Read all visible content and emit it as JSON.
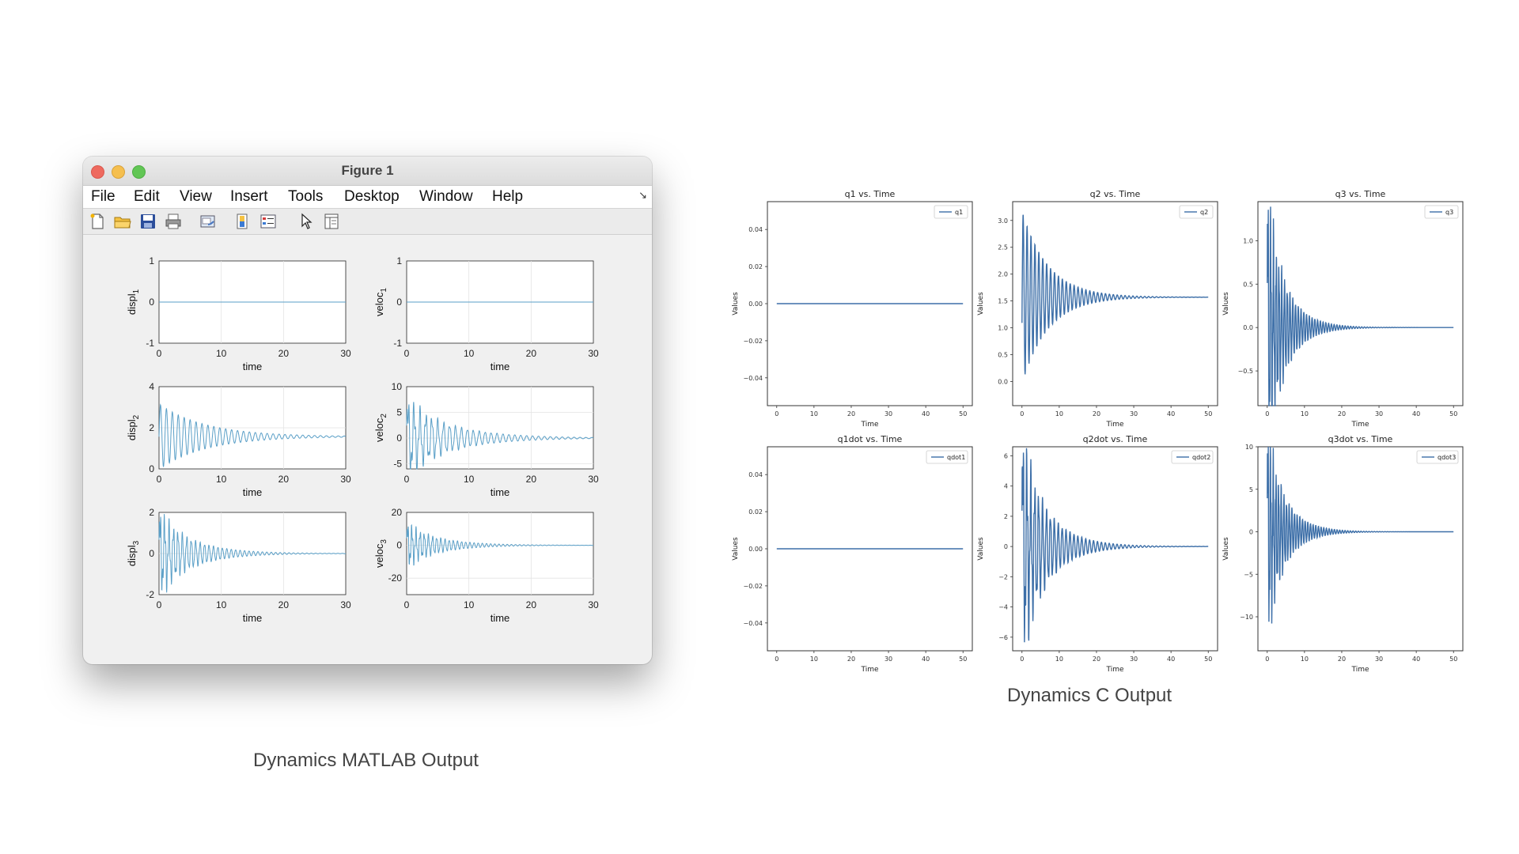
{
  "window": {
    "title": "Figure 1",
    "menu": [
      "File",
      "Edit",
      "View",
      "Insert",
      "Tools",
      "Desktop",
      "Window",
      "Help"
    ],
    "toolbar_icons": [
      "new-figure-icon",
      "open-file-icon",
      "save-icon",
      "print-icon",
      "link-plot-icon",
      "colorbar-icon",
      "legend-icon",
      "pointer-icon",
      "property-inspector-icon"
    ]
  },
  "captions": {
    "matlab": "Dynamics MATLAB Output",
    "c": "Dynamics C Output"
  },
  "colors": {
    "matlab_line": "#5a9fc7",
    "c_line": "#3d6fa8"
  },
  "chart_data": [
    {
      "type": "line",
      "ylabel_base": "displ",
      "ylabel_sub": "1",
      "xlabel": "time",
      "xlim": [
        0,
        30
      ],
      "xticks": [
        0,
        10,
        20,
        30
      ],
      "ylim": [
        -1,
        1
      ],
      "yticks": [
        -1,
        0,
        1
      ],
      "grid": true,
      "signal": {
        "kind": "zero",
        "value": 0
      }
    },
    {
      "type": "line",
      "ylabel_base": "veloc",
      "ylabel_sub": "1",
      "xlabel": "time",
      "xlim": [
        0,
        30
      ],
      "xticks": [
        0,
        10,
        20,
        30
      ],
      "ylim": [
        -1,
        1
      ],
      "yticks": [
        -1,
        0,
        1
      ],
      "grid": true,
      "signal": {
        "kind": "zero",
        "value": 0
      }
    },
    {
      "type": "line",
      "ylabel_base": "displ",
      "ylabel_sub": "2",
      "xlabel": "time",
      "xlim": [
        0,
        30
      ],
      "xticks": [
        0,
        10,
        20,
        30
      ],
      "ylim": [
        0,
        4
      ],
      "yticks": [
        0,
        2,
        4
      ],
      "grid": true,
      "signal": {
        "kind": "decay",
        "offset": 1.57,
        "amp": 1.6,
        "freq": 1.05,
        "tau": 7.5
      }
    },
    {
      "type": "line",
      "ylabel_base": "veloc",
      "ylabel_sub": "2",
      "xlabel": "time",
      "xlim": [
        0,
        30
      ],
      "xticks": [
        0,
        10,
        20,
        30
      ],
      "ylim": [
        -6,
        10
      ],
      "yticks": [
        -5,
        0,
        5,
        10
      ],
      "grid": true,
      "signal": {
        "kind": "decay",
        "offset": 0,
        "amp": 6.2,
        "freq": 1.05,
        "tau": 7.5,
        "jitter": true
      }
    },
    {
      "type": "line",
      "ylabel_base": "displ",
      "ylabel_sub": "3",
      "xlabel": "time",
      "xlim": [
        0,
        30
      ],
      "xticks": [
        0,
        10,
        20,
        30
      ],
      "ylim": [
        -2,
        2
      ],
      "yticks": [
        -2,
        0,
        2
      ],
      "grid": true,
      "signal": {
        "kind": "decay",
        "offset": 0,
        "amp": 1.7,
        "freq": 1.4,
        "tau": 5.5,
        "jitter": true
      }
    },
    {
      "type": "line",
      "ylabel_base": "veloc",
      "ylabel_sub": "3",
      "xlabel": "time",
      "xlim": [
        0,
        30
      ],
      "xticks": [
        0,
        10,
        20,
        30
      ],
      "ylim": [
        -30,
        20
      ],
      "yticks": [
        -20,
        0,
        20
      ],
      "grid": true,
      "signal": {
        "kind": "decay",
        "offset": 0,
        "amp": 11,
        "freq": 1.5,
        "tau": 5.5,
        "jitter": true
      }
    },
    {
      "type": "line",
      "title": "q1 vs. Time",
      "legend": "q1",
      "xlabel": "Time",
      "ylabel": "Values",
      "xlim": [
        -2.5,
        52.5
      ],
      "xticks": [
        0,
        10,
        20,
        30,
        40,
        50
      ],
      "ylim": [
        -0.055,
        0.055
      ],
      "yticks": [
        0.04,
        0.02,
        0.0,
        -0.02,
        -0.04
      ],
      "yticklabels": [
        "0.04",
        "0.02",
        "0.00",
        "−0.02",
        "−0.04"
      ],
      "signal": {
        "kind": "zero",
        "value": 0
      }
    },
    {
      "type": "line",
      "title": "q2 vs. Time",
      "legend": "q2",
      "xlabel": "Time",
      "ylabel": "Values",
      "xlim": [
        -2.5,
        52.5
      ],
      "xticks": [
        0,
        10,
        20,
        30,
        40,
        50
      ],
      "ylim": [
        -0.45,
        3.35
      ],
      "yticks": [
        0.0,
        0.5,
        1.0,
        1.5,
        2.0,
        2.5,
        3.0
      ],
      "yticklabels": [
        "0.0",
        "0.5",
        "1.0",
        "1.5",
        "2.0",
        "2.5",
        "3.0"
      ],
      "signal": {
        "kind": "decay",
        "offset": 1.57,
        "amp": 1.62,
        "freq": 0.95,
        "tau": 7,
        "start": -0.3
      }
    },
    {
      "type": "line",
      "title": "q3 vs. Time",
      "legend": "q3",
      "xlabel": "Time",
      "ylabel": "Values",
      "xlim": [
        -2.5,
        52.5
      ],
      "xticks": [
        0,
        10,
        20,
        30,
        40,
        50
      ],
      "ylim": [
        -0.9,
        1.45
      ],
      "yticks": [
        1.0,
        0.5,
        0.0,
        -0.5
      ],
      "yticklabels": [
        "1.0",
        "0.5",
        "0.0",
        "−0.5"
      ],
      "signal": {
        "kind": "decay",
        "offset": 0,
        "amp": 1.3,
        "freq": 1.35,
        "tau": 5,
        "jitter": true
      }
    },
    {
      "type": "line",
      "title": "q1dot vs. Time",
      "legend": "qdot1",
      "xlabel": "Time",
      "ylabel": "Values",
      "xlim": [
        -2.5,
        52.5
      ],
      "xticks": [
        0,
        10,
        20,
        30,
        40,
        50
      ],
      "ylim": [
        -0.055,
        0.055
      ],
      "yticks": [
        0.04,
        0.02,
        0.0,
        -0.02,
        -0.04
      ],
      "yticklabels": [
        "0.04",
        "0.02",
        "0.00",
        "−0.02",
        "−0.04"
      ],
      "signal": {
        "kind": "zero",
        "value": 0
      }
    },
    {
      "type": "line",
      "title": "q2dot vs. Time",
      "legend": "qdot2",
      "xlabel": "Time",
      "ylabel": "Values",
      "xlim": [
        -2.5,
        52.5
      ],
      "xticks": [
        0,
        10,
        20,
        30,
        40,
        50
      ],
      "ylim": [
        -6.9,
        6.6
      ],
      "yticks": [
        6,
        4,
        2,
        0,
        -2,
        -4,
        -6
      ],
      "yticklabels": [
        "6",
        "4",
        "2",
        "0",
        "−2",
        "−4",
        "−6"
      ],
      "signal": {
        "kind": "decay",
        "offset": 0,
        "amp": 6.0,
        "freq": 0.95,
        "tau": 7,
        "jitter": true
      }
    },
    {
      "type": "line",
      "title": "q3dot vs. Time",
      "legend": "qdot3",
      "xlabel": "Time",
      "ylabel": "Values",
      "xlim": [
        -2.5,
        52.5
      ],
      "xticks": [
        0,
        10,
        20,
        30,
        40,
        50
      ],
      "ylim": [
        -14,
        10
      ],
      "yticks": [
        10,
        5,
        0,
        -5,
        -10
      ],
      "yticklabels": [
        "10",
        "5",
        "0",
        "−5",
        "−10"
      ],
      "signal": {
        "kind": "decay",
        "offset": 0,
        "amp": 10,
        "freq": 1.4,
        "tau": 5,
        "jitter": true
      }
    }
  ]
}
